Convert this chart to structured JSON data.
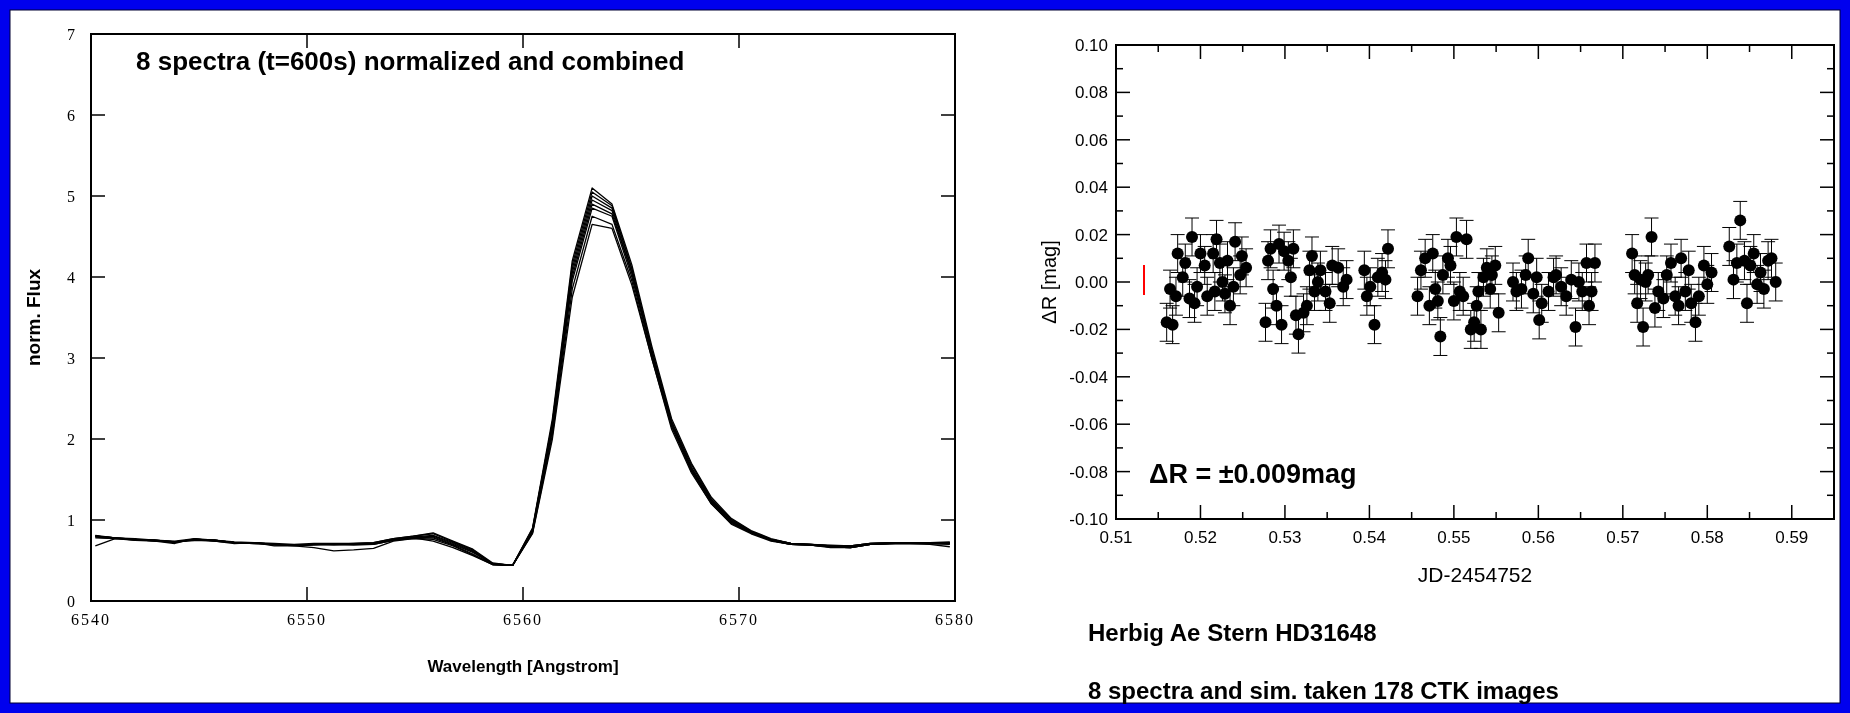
{
  "chart_data": [
    {
      "type": "line",
      "title": "8 spectra (t=600s) normalized and combined",
      "xlabel": "Wavelength [Angstrom]",
      "ylabel": "norm. Flux",
      "x": [
        6540.2,
        6541.12,
        6542.04,
        6542.96,
        6543.88,
        6544.8,
        6545.72,
        6546.64,
        6547.56,
        6548.48,
        6549.4,
        6550.32,
        6551.24,
        6552.16,
        6553.08,
        6554.0,
        6554.92,
        6555.84,
        6556.76,
        6557.68,
        6558.6,
        6559.52,
        6560.44,
        6561.36,
        6562.28,
        6563.2,
        6564.12,
        6565.04,
        6565.96,
        6566.88,
        6567.8,
        6568.72,
        6569.64,
        6570.56,
        6571.48,
        6572.4,
        6573.32,
        6574.24,
        6575.16,
        6576.08,
        6577.0,
        6577.92,
        6578.84,
        6579.76
      ],
      "xlim": [
        6540,
        6580
      ],
      "ylim": [
        0,
        7
      ],
      "xticks": [
        6540,
        6550,
        6560,
        6570,
        6580
      ],
      "yticks": [
        0,
        1,
        2,
        3,
        4,
        5,
        6,
        7
      ],
      "series": [
        {
          "color": "#000000",
          "values": [
            0.8,
            0.78,
            0.76,
            0.75,
            0.73,
            0.76,
            0.75,
            0.72,
            0.72,
            0.7,
            0.69,
            0.7,
            0.7,
            0.7,
            0.71,
            0.76,
            0.79,
            0.81,
            0.72,
            0.62,
            0.46,
            0.44,
            0.9,
            2.25,
            4.2,
            5.1,
            4.9,
            4.15,
            3.15,
            2.25,
            1.7,
            1.28,
            1.02,
            0.87,
            0.77,
            0.71,
            0.7,
            0.68,
            0.68,
            0.71,
            0.72,
            0.72,
            0.72,
            0.72
          ]
        },
        {
          "color": "#000000",
          "values": [
            0.81,
            0.78,
            0.77,
            0.75,
            0.74,
            0.77,
            0.75,
            0.73,
            0.72,
            0.71,
            0.7,
            0.71,
            0.71,
            0.71,
            0.72,
            0.77,
            0.8,
            0.83,
            0.73,
            0.63,
            0.46,
            0.44,
            0.89,
            2.2,
            4.15,
            5.05,
            4.88,
            4.1,
            3.1,
            2.22,
            1.68,
            1.26,
            1.01,
            0.86,
            0.76,
            0.71,
            0.7,
            0.69,
            0.68,
            0.71,
            0.72,
            0.72,
            0.72,
            0.73
          ]
        },
        {
          "color": "#000000",
          "values": [
            0.79,
            0.77,
            0.76,
            0.74,
            0.73,
            0.75,
            0.74,
            0.72,
            0.71,
            0.7,
            0.69,
            0.7,
            0.69,
            0.7,
            0.7,
            0.75,
            0.78,
            0.8,
            0.71,
            0.61,
            0.45,
            0.44,
            0.88,
            2.2,
            4.1,
            5.0,
            4.85,
            4.1,
            3.1,
            2.2,
            1.65,
            1.25,
            1.0,
            0.86,
            0.76,
            0.71,
            0.7,
            0.68,
            0.67,
            0.7,
            0.71,
            0.72,
            0.72,
            0.72
          ]
        },
        {
          "color": "#000000",
          "values": [
            0.8,
            0.78,
            0.75,
            0.75,
            0.72,
            0.76,
            0.75,
            0.72,
            0.72,
            0.69,
            0.69,
            0.7,
            0.7,
            0.7,
            0.71,
            0.76,
            0.78,
            0.79,
            0.7,
            0.6,
            0.46,
            0.44,
            0.87,
            2.15,
            4.05,
            4.95,
            4.82,
            4.05,
            3.08,
            2.2,
            1.64,
            1.24,
            0.99,
            0.85,
            0.76,
            0.71,
            0.7,
            0.68,
            0.68,
            0.71,
            0.72,
            0.72,
            0.71,
            0.7
          ]
        },
        {
          "color": "#000000",
          "values": [
            0.78,
            0.77,
            0.76,
            0.74,
            0.71,
            0.77,
            0.74,
            0.71,
            0.72,
            0.68,
            0.68,
            0.69,
            0.7,
            0.71,
            0.72,
            0.77,
            0.8,
            0.84,
            0.74,
            0.64,
            0.47,
            0.44,
            0.86,
            2.15,
            4.0,
            4.9,
            4.78,
            4.05,
            3.05,
            2.18,
            1.62,
            1.23,
            0.98,
            0.85,
            0.75,
            0.7,
            0.69,
            0.67,
            0.66,
            0.7,
            0.71,
            0.72,
            0.72,
            0.71
          ]
        },
        {
          "color": "#000000",
          "values": [
            0.8,
            0.78,
            0.76,
            0.75,
            0.73,
            0.75,
            0.75,
            0.72,
            0.71,
            0.7,
            0.69,
            0.7,
            0.7,
            0.69,
            0.7,
            0.75,
            0.77,
            0.78,
            0.69,
            0.58,
            0.45,
            0.44,
            0.85,
            2.1,
            3.95,
            4.85,
            4.75,
            4.0,
            3.05,
            2.18,
            1.62,
            1.22,
            0.97,
            0.84,
            0.75,
            0.7,
            0.69,
            0.67,
            0.66,
            0.7,
            0.71,
            0.71,
            0.71,
            0.71
          ]
        },
        {
          "color": "#000000",
          "values": [
            0.8,
            0.78,
            0.76,
            0.75,
            0.73,
            0.76,
            0.74,
            0.72,
            0.72,
            0.7,
            0.68,
            0.66,
            0.62,
            0.63,
            0.65,
            0.74,
            0.77,
            0.76,
            0.68,
            0.57,
            0.45,
            0.44,
            0.84,
            2.05,
            3.85,
            4.75,
            4.65,
            3.95,
            3.0,
            2.15,
            1.6,
            1.2,
            0.96,
            0.84,
            0.75,
            0.7,
            0.69,
            0.67,
            0.66,
            0.7,
            0.71,
            0.71,
            0.71,
            0.71
          ]
        },
        {
          "color": "#000000",
          "values": [
            0.68,
            0.77,
            0.75,
            0.74,
            0.73,
            0.76,
            0.75,
            0.72,
            0.72,
            0.7,
            0.69,
            0.7,
            0.7,
            0.7,
            0.71,
            0.76,
            0.78,
            0.74,
            0.66,
            0.56,
            0.45,
            0.44,
            0.83,
            2.0,
            3.75,
            4.65,
            4.6,
            3.9,
            3.0,
            2.12,
            1.58,
            1.2,
            0.95,
            0.83,
            0.74,
            0.7,
            0.69,
            0.66,
            0.66,
            0.7,
            0.71,
            0.71,
            0.7,
            0.67
          ]
        }
      ]
    },
    {
      "type": "scatter",
      "xlabel": "JD-2454752",
      "ylabel": "ΔR [mag]",
      "marker": "circle",
      "color": "#000000",
      "annotations": [
        "ΔR = ±0.009mag",
        "Herbig Ae Stern HD31648",
        "8 spectra and sim. taken 178 CTK images"
      ],
      "xlim": [
        0.51,
        0.595
      ],
      "ylim": [
        -0.1,
        0.1
      ],
      "xticks": [
        0.51,
        {
          "value": 0.515,
          "label": null
        },
        0.52,
        {
          "value": 0.525,
          "label": null
        },
        0.53,
        {
          "value": 0.535,
          "label": null
        },
        0.54,
        {
          "value": 0.545,
          "label": null
        },
        0.55,
        {
          "value": 0.555,
          "label": null
        },
        0.56,
        {
          "value": 0.565,
          "label": null
        },
        0.57,
        {
          "value": 0.575,
          "label": null
        },
        0.58,
        {
          "value": 0.585,
          "label": null
        },
        0.59
      ],
      "yticks": [
        {
          "value": -0.1,
          "label": "-0.10"
        },
        {
          "value": -0.09,
          "label": null
        },
        {
          "value": -0.08,
          "label": "-0.08"
        },
        {
          "value": -0.07,
          "label": null
        },
        {
          "value": -0.06,
          "label": "-0.06"
        },
        {
          "value": -0.05,
          "label": null
        },
        {
          "value": -0.04,
          "label": "-0.04"
        },
        {
          "value": -0.03,
          "label": null
        },
        {
          "value": -0.02,
          "label": "-0.02"
        },
        {
          "value": -0.01,
          "label": null
        },
        {
          "value": 0,
          "label": "0.00"
        },
        {
          "value": 0.01,
          "label": null
        },
        {
          "value": 0.02,
          "label": "0.02"
        },
        {
          "value": 0.03,
          "label": null
        },
        {
          "value": 0.04,
          "label": "0.04"
        },
        {
          "value": 0.05,
          "label": null
        },
        {
          "value": 0.06,
          "label": "0.06"
        },
        {
          "value": 0.07,
          "label": null
        },
        {
          "value": 0.08,
          "label": "0.08"
        },
        {
          "value": 0.09,
          "label": null
        },
        {
          "value": 0.1,
          "label": "0.10"
        }
      ],
      "x": [
        0.516,
        0.5167,
        0.5164,
        0.5171,
        0.5173,
        0.5179,
        0.5182,
        0.5187,
        0.519,
        0.5193,
        0.5196,
        0.52,
        0.5205,
        0.5208,
        0.5217,
        0.5215,
        0.5219,
        0.5223,
        0.5226,
        0.5229,
        0.5232,
        0.5235,
        0.5239,
        0.5241,
        0.5247,
        0.5249,
        0.5254,
        0.5277,
        0.528,
        0.5283,
        0.5286,
        0.529,
        0.5293,
        0.5296,
        0.5299,
        0.5304,
        0.5307,
        0.531,
        0.5313,
        0.5316,
        0.5322,
        0.5326,
        0.5329,
        0.5332,
        0.5335,
        0.5339,
        0.5342,
        0.5348,
        0.5353,
        0.5356,
        0.5363,
        0.5369,
        0.5373,
        0.5394,
        0.5397,
        0.5401,
        0.5406,
        0.541,
        0.5415,
        0.5419,
        0.5422,
        0.5457,
        0.5461,
        0.5466,
        0.5471,
        0.5475,
        0.5478,
        0.5481,
        0.5484,
        0.5487,
        0.5493,
        0.5496,
        0.55,
        0.5503,
        0.5507,
        0.5511,
        0.5515,
        0.552,
        0.5524,
        0.5527,
        0.5532,
        0.5529,
        0.5535,
        0.5539,
        0.5543,
        0.5545,
        0.5549,
        0.5553,
        0.557,
        0.5574,
        0.558,
        0.5585,
        0.5588,
        0.5594,
        0.5598,
        0.5601,
        0.5604,
        0.5612,
        0.5618,
        0.5621,
        0.5627,
        0.5633,
        0.5639,
        0.5644,
        0.5648,
        0.5652,
        0.5657,
        0.566,
        0.5663,
        0.5667,
        0.5711,
        0.5714,
        0.5717,
        0.5721,
        0.5724,
        0.5727,
        0.573,
        0.5734,
        0.5738,
        0.5742,
        0.5748,
        0.5752,
        0.5757,
        0.5762,
        0.5766,
        0.5769,
        0.5774,
        0.5778,
        0.5781,
        0.5786,
        0.579,
        0.5796,
        0.58,
        0.5805,
        0.5826,
        0.5831,
        0.5835,
        0.5839,
        0.5844,
        0.5847,
        0.5851,
        0.5855,
        0.5859,
        0.5863,
        0.5867,
        0.5872,
        0.5876,
        0.5881
      ],
      "values": [
        -0.017,
        -0.018,
        -0.003,
        -0.006,
        0.012,
        0.002,
        0.008,
        -0.007,
        0.019,
        -0.009,
        -0.002,
        0.012,
        0.007,
        -0.006,
        -0.004,
        0.012,
        0.018,
        0.008,
        0.0,
        -0.005,
        0.009,
        -0.01,
        -0.002,
        0.017,
        0.003,
        0.011,
        0.006,
        -0.017,
        0.009,
        0.014,
        -0.003,
        -0.01,
        0.016,
        -0.018,
        0.013,
        0.009,
        0.002,
        0.014,
        -0.014,
        -0.022,
        -0.013,
        -0.01,
        0.005,
        0.011,
        -0.004,
        0.0,
        0.005,
        -0.004,
        -0.009,
        0.007,
        0.006,
        -0.002,
        0.001,
        0.005,
        -0.006,
        -0.002,
        -0.018,
        0.002,
        0.004,
        0.001,
        0.014,
        -0.006,
        0.005,
        0.01,
        -0.01,
        0.012,
        -0.003,
        -0.008,
        -0.023,
        0.003,
        0.01,
        0.007,
        -0.008,
        0.019,
        -0.004,
        -0.006,
        0.018,
        -0.02,
        -0.017,
        -0.01,
        -0.02,
        -0.004,
        0.002,
        0.006,
        -0.003,
        0.003,
        0.007,
        -0.013,
        0.0,
        -0.004,
        -0.003,
        0.003,
        0.01,
        -0.005,
        0.002,
        -0.016,
        -0.009,
        -0.004,
        0.002,
        0.003,
        -0.002,
        -0.006,
        0.001,
        -0.019,
        0.0,
        -0.004,
        0.008,
        -0.01,
        -0.004,
        0.008,
        0.012,
        0.003,
        -0.009,
        0.001,
        -0.019,
        0.0,
        0.003,
        0.019,
        -0.011,
        -0.004,
        -0.007,
        0.003,
        0.008,
        -0.006,
        -0.01,
        0.01,
        -0.004,
        0.005,
        -0.009,
        -0.017,
        -0.006,
        0.007,
        -0.001,
        0.004,
        0.015,
        0.001,
        0.008,
        0.026,
        0.009,
        -0.009,
        0.007,
        0.012,
        -0.001,
        0.004,
        -0.003,
        0.009,
        0.01,
        0.0
      ],
      "errors": [
        0.008,
        0.008,
        0.008,
        0.008,
        0.008,
        0.008,
        0.008,
        0.008,
        0.008,
        0.008,
        0.008,
        0.008,
        0.008,
        0.008,
        0.008,
        0.008,
        0.008,
        0.008,
        0.008,
        0.008,
        0.008,
        0.008,
        0.008,
        0.008,
        0.008,
        0.008,
        0.008,
        0.008,
        0.008,
        0.008,
        0.008,
        0.008,
        0.008,
        0.008,
        0.008,
        0.008,
        0.008,
        0.008,
        0.008,
        0.008,
        0.008,
        0.008,
        0.008,
        0.008,
        0.008,
        0.008,
        0.008,
        0.008,
        0.008,
        0.008,
        0.008,
        0.008,
        0.008,
        0.008,
        0.008,
        0.008,
        0.008,
        0.008,
        0.008,
        0.008,
        0.008,
        0.008,
        0.008,
        0.008,
        0.008,
        0.008,
        0.008,
        0.008,
        0.008,
        0.008,
        0.008,
        0.008,
        0.008,
        0.008,
        0.008,
        0.008,
        0.008,
        0.008,
        0.008,
        0.008,
        0.008,
        0.008,
        0.008,
        0.008,
        0.008,
        0.008,
        0.008,
        0.008,
        0.008,
        0.008,
        0.008,
        0.008,
        0.008,
        0.008,
        0.008,
        0.008,
        0.008,
        0.008,
        0.008,
        0.008,
        0.008,
        0.008,
        0.008,
        0.008,
        0.008,
        0.008,
        0.008,
        0.008,
        0.008,
        0.008,
        0.008,
        0.008,
        0.008,
        0.008,
        0.008,
        0.008,
        0.008,
        0.008,
        0.008,
        0.008,
        0.008,
        0.008,
        0.008,
        0.008,
        0.008,
        0.008,
        0.008,
        0.008,
        0.008,
        0.008,
        0.008,
        0.008,
        0.008,
        0.008,
        0.008,
        0.008,
        0.008,
        0.008,
        0.008,
        0.008,
        0.008,
        0.008,
        0.008,
        0.008,
        0.008,
        0.008,
        0.008,
        0.008
      ]
    }
  ]
}
